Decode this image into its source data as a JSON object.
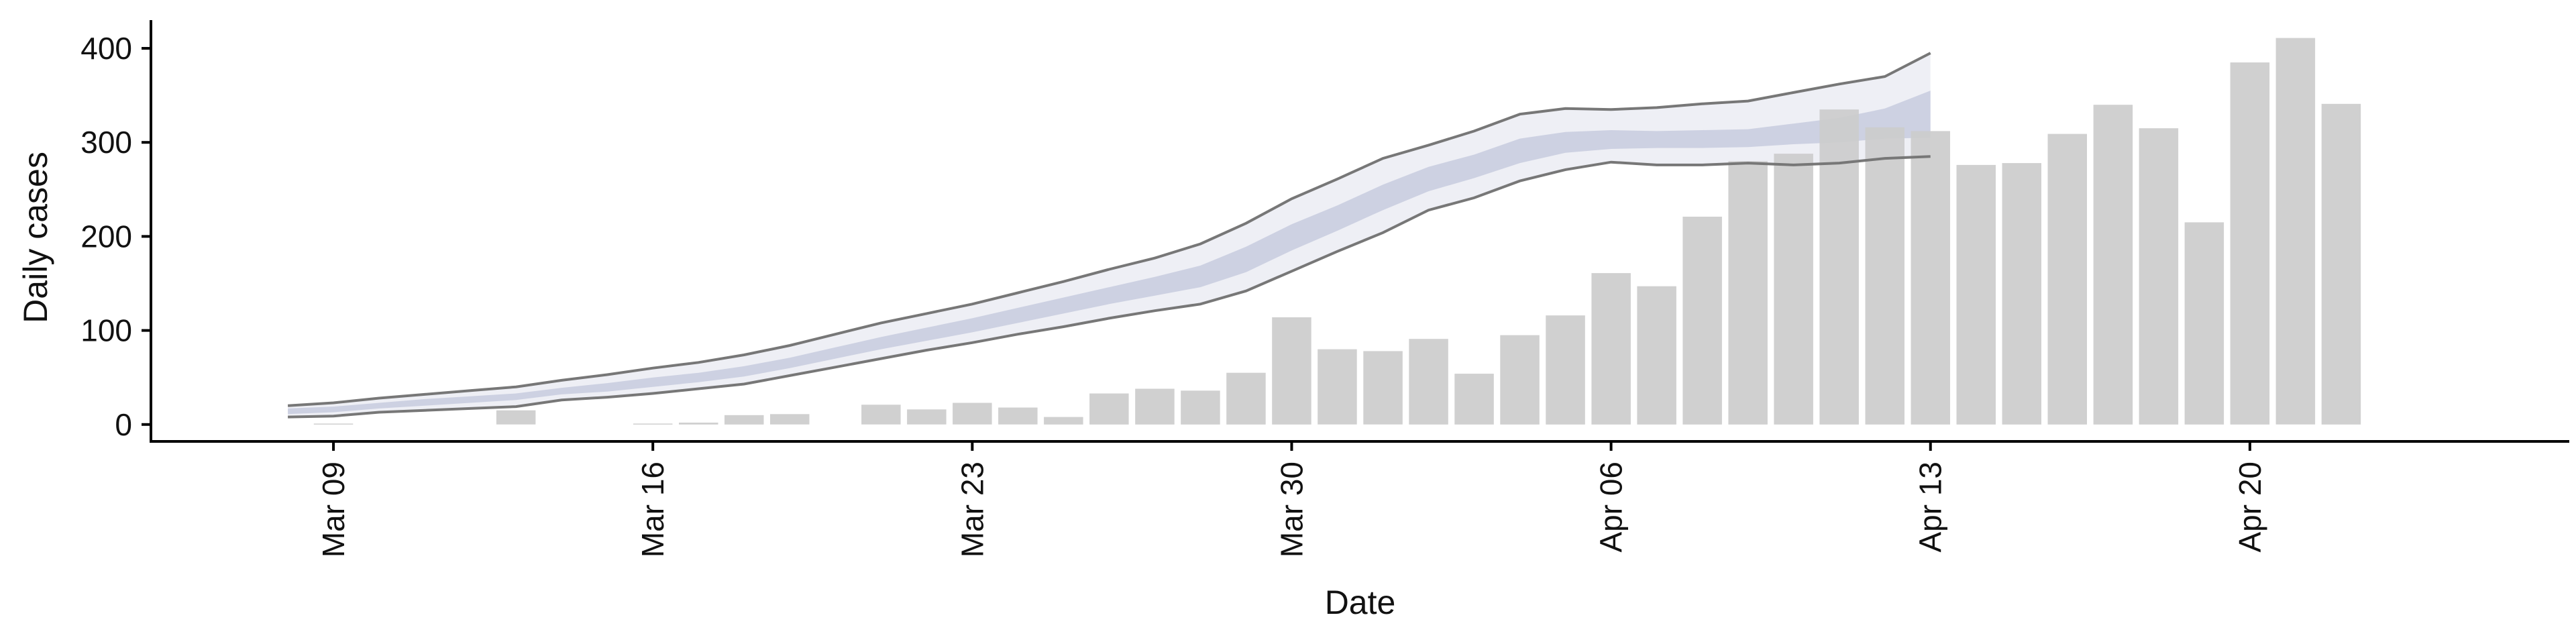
{
  "chart_data": {
    "type": "bar",
    "xlabel": "Date",
    "ylabel": "Daily cases",
    "xlim": [
      "2020-03-05",
      "2020-04-27"
    ],
    "ylim": [
      -18,
      430
    ],
    "yticks": [
      0,
      100,
      200,
      300,
      400
    ],
    "xticks": [
      {
        "date": "2020-03-09",
        "label": "Mar 09"
      },
      {
        "date": "2020-03-16",
        "label": "Mar 16"
      },
      {
        "date": "2020-03-23",
        "label": "Mar 23"
      },
      {
        "date": "2020-03-30",
        "label": "Mar 30"
      },
      {
        "date": "2020-04-06",
        "label": "Apr 06"
      },
      {
        "date": "2020-04-13",
        "label": "Apr 13"
      },
      {
        "date": "2020-04-20",
        "label": "Apr 20"
      }
    ],
    "grid": false,
    "bar_color": "#cccccc",
    "bars": [
      {
        "date": "2020-03-09",
        "value": 1
      },
      {
        "date": "2020-03-13",
        "value": 15
      },
      {
        "date": "2020-03-16",
        "value": 1
      },
      {
        "date": "2020-03-17",
        "value": 2
      },
      {
        "date": "2020-03-18",
        "value": 10
      },
      {
        "date": "2020-03-19",
        "value": 11
      },
      {
        "date": "2020-03-21",
        "value": 21
      },
      {
        "date": "2020-03-22",
        "value": 16
      },
      {
        "date": "2020-03-23",
        "value": 23
      },
      {
        "date": "2020-03-24",
        "value": 18
      },
      {
        "date": "2020-03-25",
        "value": 8
      },
      {
        "date": "2020-03-26",
        "value": 33
      },
      {
        "date": "2020-03-27",
        "value": 38
      },
      {
        "date": "2020-03-28",
        "value": 36
      },
      {
        "date": "2020-03-29",
        "value": 55
      },
      {
        "date": "2020-03-30",
        "value": 114
      },
      {
        "date": "2020-03-31",
        "value": 80
      },
      {
        "date": "2020-04-01",
        "value": 78
      },
      {
        "date": "2020-04-02",
        "value": 91
      },
      {
        "date": "2020-04-03",
        "value": 54
      },
      {
        "date": "2020-04-04",
        "value": 95
      },
      {
        "date": "2020-04-05",
        "value": 116
      },
      {
        "date": "2020-04-06",
        "value": 161
      },
      {
        "date": "2020-04-07",
        "value": 147
      },
      {
        "date": "2020-04-08",
        "value": 221
      },
      {
        "date": "2020-04-09",
        "value": 280
      },
      {
        "date": "2020-04-10",
        "value": 288
      },
      {
        "date": "2020-04-11",
        "value": 335
      },
      {
        "date": "2020-04-12",
        "value": 316
      },
      {
        "date": "2020-04-13",
        "value": 312
      },
      {
        "date": "2020-04-14",
        "value": 276
      },
      {
        "date": "2020-04-15",
        "value": 278
      },
      {
        "date": "2020-04-16",
        "value": 309
      },
      {
        "date": "2020-04-17",
        "value": 340
      },
      {
        "date": "2020-04-18",
        "value": 315
      },
      {
        "date": "2020-04-19",
        "value": 215
      },
      {
        "date": "2020-04-20",
        "value": 385
      },
      {
        "date": "2020-04-21",
        "value": 411
      },
      {
        "date": "2020-04-22",
        "value": 341
      }
    ],
    "bands": {
      "outer_fill": "#e3e5ee",
      "inner_fill": "#bfc5da",
      "edge_line_color": "#777777",
      "dates": [
        "2020-03-08",
        "2020-03-09",
        "2020-03-10",
        "2020-03-11",
        "2020-03-12",
        "2020-03-13",
        "2020-03-14",
        "2020-03-15",
        "2020-03-16",
        "2020-03-17",
        "2020-03-18",
        "2020-03-19",
        "2020-03-20",
        "2020-03-21",
        "2020-03-22",
        "2020-03-23",
        "2020-03-24",
        "2020-03-25",
        "2020-03-26",
        "2020-03-27",
        "2020-03-28",
        "2020-03-29",
        "2020-03-30",
        "2020-03-31",
        "2020-04-01",
        "2020-04-02",
        "2020-04-03",
        "2020-04-04",
        "2020-04-05",
        "2020-04-06",
        "2020-04-07",
        "2020-04-08",
        "2020-04-09",
        "2020-04-10",
        "2020-04-11",
        "2020-04-12",
        "2020-04-13"
      ],
      "outer_low": [
        8,
        9,
        13,
        15,
        17,
        19,
        26,
        29,
        33,
        38,
        43,
        52,
        61,
        70,
        79,
        87,
        96,
        104,
        113,
        121,
        128,
        142,
        163,
        184,
        204,
        228,
        241,
        259,
        271,
        279,
        276,
        276,
        278,
        276,
        278,
        283,
        285
      ],
      "outer_high": [
        20,
        23,
        28,
        32,
        36,
        40,
        47,
        53,
        60,
        66,
        74,
        84,
        96,
        108,
        118,
        128,
        140,
        152,
        165,
        177,
        192,
        214,
        240,
        261,
        283,
        297,
        312,
        330,
        336,
        335,
        337,
        341,
        344,
        353,
        362,
        370,
        395
      ],
      "inner_low": [
        11,
        13,
        17,
        20,
        23,
        26,
        32,
        35,
        40,
        45,
        51,
        60,
        70,
        80,
        89,
        98,
        108,
        118,
        128,
        137,
        146,
        162,
        185,
        206,
        228,
        248,
        262,
        278,
        289,
        293,
        294,
        294,
        295,
        298,
        300,
        304,
        305
      ],
      "inner_high": [
        17,
        19,
        23,
        27,
        30,
        33,
        39,
        44,
        50,
        55,
        62,
        71,
        82,
        93,
        103,
        113,
        124,
        135,
        146,
        157,
        169,
        189,
        213,
        233,
        255,
        274,
        287,
        304,
        311,
        313,
        312,
        313,
        314,
        320,
        326,
        336,
        355
      ],
      "line_low_end": "2020-04-13",
      "line_high_end": "2020-04-13"
    }
  }
}
